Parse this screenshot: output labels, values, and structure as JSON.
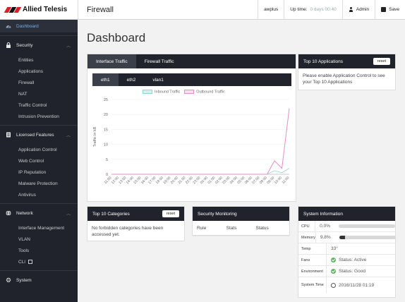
{
  "brand": {
    "name": "Allied Telesis"
  },
  "header": {
    "page": "Firewall",
    "device": "awplus",
    "uptime_label": "Up time:",
    "uptime_value": "0 days 00:40",
    "admin_label": "Admin",
    "save_label": "Save"
  },
  "sidebar": {
    "dashboard": "Dashboard",
    "security": {
      "label": "Security",
      "items": [
        "Entities",
        "Applications",
        "Firewall",
        "NAT",
        "Traffic Control",
        "Intrusion Prevention"
      ]
    },
    "licensed": {
      "label": "Licensed Features",
      "items": [
        "Application Control",
        "Web Control",
        "IP Reputation",
        "Malware Protection",
        "Antivirus"
      ]
    },
    "network": {
      "label": "Network",
      "items": [
        "Interface Management",
        "VLAN",
        "Tools",
        "CLI"
      ]
    },
    "system": "System"
  },
  "main": {
    "title": "Dashboard",
    "traffic": {
      "tabs": [
        "Interface Traffic",
        "Firewall Traffic"
      ],
      "subtabs": [
        "eth1",
        "eth2",
        "vlan1"
      ]
    },
    "top_apps": {
      "title": "Top 10 Applications",
      "reset": "reset",
      "message": "Please enable Application Control to see your Top 10 Applications"
    },
    "top_categories": {
      "title": "Top 10 Categories",
      "reset": "reset",
      "message": "No forbidden categories have been accessed yet."
    },
    "security_monitoring": {
      "title": "Security Monitoring",
      "columns": [
        "Rule",
        "Stats",
        "Status"
      ]
    },
    "system_info": {
      "title": "System Information",
      "rows": [
        {
          "key": "CPU",
          "value": "0.0%",
          "bar": 0.0
        },
        {
          "key": "Memory",
          "value": "9.8%",
          "bar": 0.098
        },
        {
          "key": "Temp",
          "value": "33°"
        },
        {
          "key": "Fans",
          "value": "Status: Active"
        },
        {
          "key": "Environment",
          "value": "Status: Good"
        },
        {
          "key": "System Time",
          "value": "2016/11/28 01:19"
        }
      ]
    }
  },
  "chart_data": {
    "type": "line",
    "ylabel": "Traffic in kB",
    "ylim": [
      0,
      25
    ],
    "yticks": [
      0,
      5,
      10,
      15,
      20,
      25
    ],
    "x": [
      "11:00",
      "12:00",
      "13:00",
      "14:00",
      "15:00",
      "16:00",
      "17:00",
      "18:00",
      "19:00",
      "20:00",
      "21:00",
      "22:00",
      "23:00",
      "00:00",
      "01:00",
      "02:00",
      "03:00",
      "04:00",
      "05:00",
      "06:00",
      "07:00",
      "08:00",
      "09:00",
      "10:00",
      "11:00"
    ],
    "series": [
      {
        "name": "Inbound Traffic",
        "color": "#8fd3d2",
        "values": [
          0,
          0,
          0,
          0,
          0,
          0,
          0,
          0,
          0,
          0,
          0,
          0,
          0,
          0,
          0,
          0,
          0,
          0,
          0,
          0,
          0,
          0,
          1.2,
          0.5,
          2
        ]
      },
      {
        "name": "Outbound Traffic",
        "color": "#e88bc8",
        "values": [
          0,
          0,
          0,
          0,
          0,
          0,
          0,
          0,
          0,
          0,
          0,
          0,
          0,
          0,
          0,
          0,
          0,
          0,
          0,
          0,
          0,
          0,
          4.5,
          2,
          22
        ]
      }
    ],
    "legend": "top"
  }
}
